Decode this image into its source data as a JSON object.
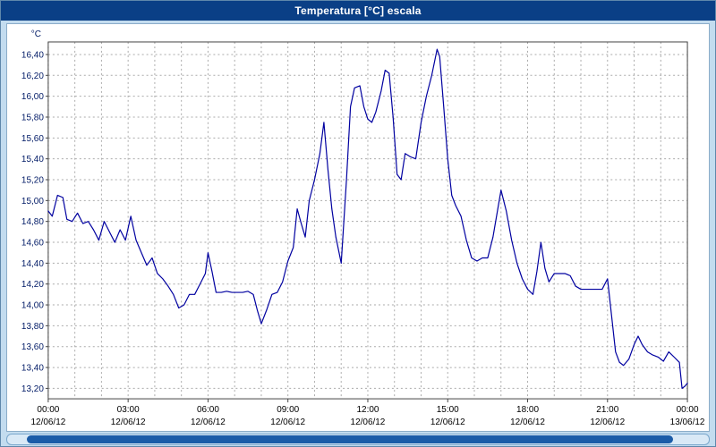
{
  "window": {
    "title": "Temperatura [°C] escala"
  },
  "chart_data": {
    "type": "line",
    "title": "Temperatura [°C] escala",
    "ylabel": "°C",
    "xlabel": "",
    "ylim": [
      13.2,
      16.4
    ],
    "xlim_hours": [
      0,
      24
    ],
    "grid": "on-dashed",
    "legend_position": "none",
    "y_ticks": [
      {
        "value": 16.4,
        "label": "16,40"
      },
      {
        "value": 16.2,
        "label": "16,20"
      },
      {
        "value": 16.0,
        "label": "16,00"
      },
      {
        "value": 15.8,
        "label": "15,80"
      },
      {
        "value": 15.6,
        "label": "15,60"
      },
      {
        "value": 15.4,
        "label": "15,40"
      },
      {
        "value": 15.2,
        "label": "15,20"
      },
      {
        "value": 15.0,
        "label": "15,00"
      },
      {
        "value": 14.8,
        "label": "14,80"
      },
      {
        "value": 14.6,
        "label": "14,60"
      },
      {
        "value": 14.4,
        "label": "14,40"
      },
      {
        "value": 14.2,
        "label": "14,20"
      },
      {
        "value": 14.0,
        "label": "14,00"
      },
      {
        "value": 13.8,
        "label": "13,80"
      },
      {
        "value": 13.6,
        "label": "13,60"
      },
      {
        "value": 13.4,
        "label": "13,40"
      },
      {
        "value": 13.2,
        "label": "13,20"
      }
    ],
    "x_ticks": [
      {
        "hour": 0,
        "time": "00:00",
        "date": "12/06/12"
      },
      {
        "hour": 3,
        "time": "03:00",
        "date": "12/06/12"
      },
      {
        "hour": 6,
        "time": "06:00",
        "date": "12/06/12"
      },
      {
        "hour": 9,
        "time": "09:00",
        "date": "12/06/12"
      },
      {
        "hour": 12,
        "time": "12:00",
        "date": "12/06/12"
      },
      {
        "hour": 15,
        "time": "15:00",
        "date": "12/06/12"
      },
      {
        "hour": 18,
        "time": "18:00",
        "date": "12/06/12"
      },
      {
        "hour": 21,
        "time": "21:00",
        "date": "12/06/12"
      },
      {
        "hour": 24,
        "time": "00:00",
        "date": "13/06/12"
      }
    ],
    "minor_x_grid_every_hours": 1,
    "series": [
      {
        "name": "Temperatura [°C]",
        "color": "#0000a0",
        "points": [
          [
            0.0,
            14.9
          ],
          [
            0.15,
            14.85
          ],
          [
            0.35,
            15.05
          ],
          [
            0.55,
            15.03
          ],
          [
            0.7,
            14.82
          ],
          [
            0.9,
            14.8
          ],
          [
            1.1,
            14.88
          ],
          [
            1.3,
            14.78
          ],
          [
            1.5,
            14.8
          ],
          [
            1.7,
            14.72
          ],
          [
            1.9,
            14.62
          ],
          [
            2.1,
            14.8
          ],
          [
            2.3,
            14.7
          ],
          [
            2.5,
            14.6
          ],
          [
            2.7,
            14.72
          ],
          [
            2.9,
            14.62
          ],
          [
            3.1,
            14.85
          ],
          [
            3.3,
            14.62
          ],
          [
            3.5,
            14.5
          ],
          [
            3.7,
            14.38
          ],
          [
            3.9,
            14.45
          ],
          [
            4.1,
            14.3
          ],
          [
            4.3,
            14.25
          ],
          [
            4.5,
            14.18
          ],
          [
            4.7,
            14.1
          ],
          [
            4.9,
            13.97
          ],
          [
            5.1,
            14.0
          ],
          [
            5.3,
            14.1
          ],
          [
            5.5,
            14.1
          ],
          [
            5.7,
            14.2
          ],
          [
            5.9,
            14.3
          ],
          [
            6.0,
            14.5
          ],
          [
            6.15,
            14.32
          ],
          [
            6.3,
            14.12
          ],
          [
            6.5,
            14.12
          ],
          [
            6.7,
            14.13
          ],
          [
            6.9,
            14.12
          ],
          [
            7.1,
            14.12
          ],
          [
            7.3,
            14.12
          ],
          [
            7.5,
            14.13
          ],
          [
            7.7,
            14.1
          ],
          [
            7.85,
            13.95
          ],
          [
            8.0,
            13.82
          ],
          [
            8.2,
            13.95
          ],
          [
            8.4,
            14.1
          ],
          [
            8.6,
            14.12
          ],
          [
            8.8,
            14.22
          ],
          [
            9.0,
            14.42
          ],
          [
            9.2,
            14.55
          ],
          [
            9.35,
            14.92
          ],
          [
            9.5,
            14.78
          ],
          [
            9.65,
            14.65
          ],
          [
            9.8,
            15.0
          ],
          [
            10.0,
            15.2
          ],
          [
            10.2,
            15.45
          ],
          [
            10.35,
            15.75
          ],
          [
            10.5,
            15.3
          ],
          [
            10.65,
            14.92
          ],
          [
            10.8,
            14.65
          ],
          [
            11.0,
            14.4
          ],
          [
            11.2,
            15.2
          ],
          [
            11.35,
            15.9
          ],
          [
            11.5,
            16.08
          ],
          [
            11.7,
            16.1
          ],
          [
            11.85,
            15.9
          ],
          [
            12.0,
            15.78
          ],
          [
            12.15,
            15.75
          ],
          [
            12.3,
            15.85
          ],
          [
            12.5,
            16.05
          ],
          [
            12.65,
            16.25
          ],
          [
            12.8,
            16.22
          ],
          [
            12.95,
            15.8
          ],
          [
            13.1,
            15.25
          ],
          [
            13.25,
            15.2
          ],
          [
            13.4,
            15.45
          ],
          [
            13.6,
            15.42
          ],
          [
            13.8,
            15.4
          ],
          [
            14.0,
            15.75
          ],
          [
            14.2,
            16.0
          ],
          [
            14.4,
            16.2
          ],
          [
            14.6,
            16.45
          ],
          [
            14.7,
            16.38
          ],
          [
            14.85,
            15.9
          ],
          [
            15.0,
            15.4
          ],
          [
            15.15,
            15.05
          ],
          [
            15.3,
            14.95
          ],
          [
            15.5,
            14.85
          ],
          [
            15.7,
            14.62
          ],
          [
            15.9,
            14.45
          ],
          [
            16.1,
            14.42
          ],
          [
            16.3,
            14.45
          ],
          [
            16.5,
            14.45
          ],
          [
            16.7,
            14.65
          ],
          [
            16.9,
            14.95
          ],
          [
            17.0,
            15.1
          ],
          [
            17.2,
            14.9
          ],
          [
            17.4,
            14.62
          ],
          [
            17.6,
            14.4
          ],
          [
            17.8,
            14.25
          ],
          [
            18.0,
            14.15
          ],
          [
            18.2,
            14.1
          ],
          [
            18.35,
            14.32
          ],
          [
            18.5,
            14.6
          ],
          [
            18.65,
            14.35
          ],
          [
            18.8,
            14.22
          ],
          [
            19.0,
            14.3
          ],
          [
            19.2,
            14.3
          ],
          [
            19.4,
            14.3
          ],
          [
            19.6,
            14.28
          ],
          [
            19.8,
            14.18
          ],
          [
            20.0,
            14.15
          ],
          [
            20.2,
            14.15
          ],
          [
            20.4,
            14.15
          ],
          [
            20.6,
            14.15
          ],
          [
            20.8,
            14.15
          ],
          [
            21.0,
            14.25
          ],
          [
            21.15,
            13.9
          ],
          [
            21.3,
            13.55
          ],
          [
            21.45,
            13.45
          ],
          [
            21.6,
            13.42
          ],
          [
            21.8,
            13.48
          ],
          [
            22.0,
            13.62
          ],
          [
            22.15,
            13.7
          ],
          [
            22.3,
            13.62
          ],
          [
            22.5,
            13.55
          ],
          [
            22.7,
            13.52
          ],
          [
            22.9,
            13.5
          ],
          [
            23.1,
            13.46
          ],
          [
            23.3,
            13.55
          ],
          [
            23.5,
            13.5
          ],
          [
            23.7,
            13.45
          ],
          [
            23.8,
            13.2
          ],
          [
            23.9,
            13.22
          ],
          [
            24.0,
            13.25
          ]
        ]
      }
    ]
  },
  "colors": {
    "titlebar_bg": "#0a3f86",
    "titlebar_text": "#ffffff",
    "frame_bg": "#c3dcef",
    "plot_bg": "#ffffff",
    "line": "#0000a0",
    "grid": "#aaaaaa",
    "axis": "#444444",
    "y_label_text": "#001a66",
    "x_label_text": "#000000"
  },
  "scrollbar": {
    "orientation": "horizontal"
  }
}
